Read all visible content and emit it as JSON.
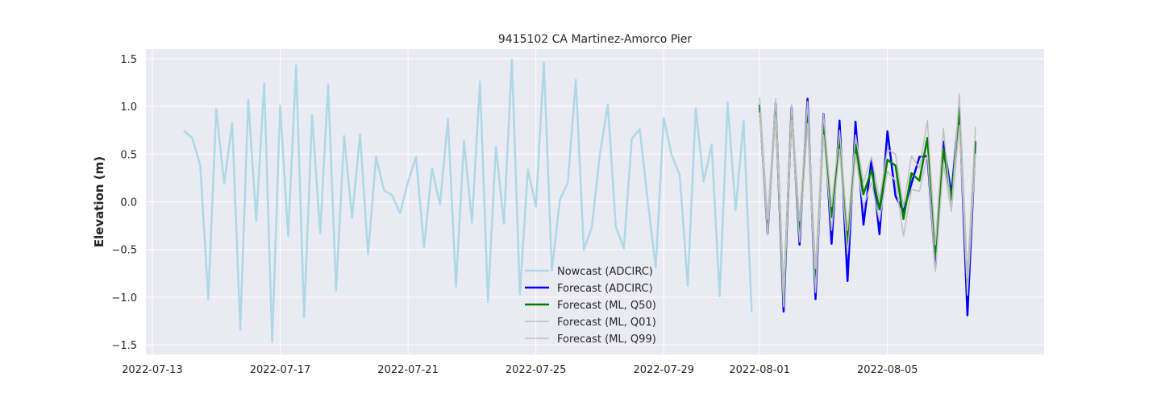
{
  "chart_data": {
    "type": "line",
    "title": "9415102 CA Martinez-Amorco Pier",
    "xlabel": "",
    "ylabel": "Elevation (m)",
    "x_axis": {
      "type": "time",
      "unit": "day",
      "origin": "2022-07-13",
      "range_days": [
        -0.2,
        27.9
      ],
      "ticks": [
        {
          "day": 0,
          "label": "2022-07-13"
        },
        {
          "day": 4,
          "label": "2022-07-17"
        },
        {
          "day": 8,
          "label": "2022-07-21"
        },
        {
          "day": 12,
          "label": "2022-07-25"
        },
        {
          "day": 16,
          "label": "2022-07-29"
        },
        {
          "day": 19,
          "label": "2022-08-01"
        },
        {
          "day": 23,
          "label": "2022-08-05"
        }
      ]
    },
    "y_axis": {
      "ylim": [
        -1.6,
        1.6
      ],
      "ticks": [
        {
          "value": 1.5,
          "label": "1.5"
        },
        {
          "value": 1.0,
          "label": "1.0"
        },
        {
          "value": 0.5,
          "label": "0.5"
        },
        {
          "value": 0.0,
          "label": "0.0"
        },
        {
          "value": -0.5,
          "label": "−0.5"
        },
        {
          "value": -1.0,
          "label": "−1.0"
        },
        {
          "value": -1.5,
          "label": "−1.5"
        }
      ]
    },
    "grid": true,
    "legend_position": "lower-center",
    "series": [
      {
        "name": "Nowcast (ADCIRC)",
        "color": "#add8e6",
        "width": 2.5,
        "x": [
          1.0,
          1.25,
          1.5,
          1.75,
          2.0,
          2.25,
          2.5,
          2.75,
          3.0,
          3.25,
          3.5,
          3.75,
          4.0,
          4.25,
          4.5,
          4.75,
          5.0,
          5.25,
          5.5,
          5.75,
          6.0,
          6.25,
          6.5,
          6.75,
          7.0,
          7.25,
          7.5,
          7.75,
          8.0,
          8.25,
          8.5,
          8.75,
          9.0,
          9.25,
          9.5,
          9.75,
          10.0,
          10.25,
          10.5,
          10.75,
          11.0,
          11.25,
          11.5,
          11.75,
          12.0,
          12.25,
          12.5,
          12.75,
          13.0,
          13.25,
          13.5,
          13.75,
          14.0,
          14.25,
          14.5,
          14.75,
          15.0,
          15.25,
          15.5,
          15.75,
          16.0,
          16.25,
          16.5,
          16.75,
          17.0,
          17.25,
          17.5,
          17.75,
          18.0,
          18.25,
          18.5,
          18.75
        ],
        "values": [
          0.74,
          0.67,
          0.38,
          -1.02,
          0.97,
          0.19,
          0.83,
          -1.34,
          1.07,
          -0.2,
          1.24,
          -1.47,
          1.01,
          -0.36,
          1.43,
          -1.21,
          0.91,
          -0.33,
          1.23,
          -0.93,
          0.69,
          -0.17,
          0.71,
          -0.55,
          0.47,
          0.12,
          0.07,
          -0.12,
          0.21,
          0.47,
          -0.48,
          0.35,
          -0.03,
          0.87,
          -0.89,
          0.64,
          -0.22,
          1.26,
          -1.05,
          0.58,
          -0.23,
          1.49,
          -0.97,
          0.34,
          -0.05,
          1.46,
          -0.72,
          0.02,
          0.2,
          1.28,
          -0.5,
          -0.27,
          0.49,
          1.02,
          -0.26,
          -0.49,
          0.66,
          0.76,
          0.01,
          -0.69,
          0.88,
          0.49,
          0.28,
          -0.88,
          0.98,
          0.21,
          0.6,
          -0.99,
          1.04,
          -0.09,
          0.85,
          -1.15
        ]
      },
      {
        "name": "Forecast (ADCIRC)",
        "color": "#0000ff",
        "width": 2.5,
        "x": [
          19.0,
          19.25,
          19.5,
          19.75,
          20.0,
          20.25,
          20.5,
          20.75,
          21.0,
          21.25,
          21.5,
          21.75,
          22.0,
          22.25,
          22.5,
          22.75,
          23.0,
          23.25,
          23.5,
          23.75,
          24.0,
          24.25,
          24.5,
          24.75,
          25.0,
          25.25,
          25.5,
          25.75
        ],
        "values": [
          1.01,
          -0.33,
          1.03,
          -1.15,
          0.99,
          -0.45,
          1.08,
          -1.02,
          0.92,
          -0.44,
          0.85,
          -0.83,
          0.84,
          -0.24,
          0.44,
          -0.34,
          0.74,
          0.06,
          -0.1,
          0.19,
          0.47,
          0.48,
          -0.68,
          0.63,
          0.08,
          0.98,
          -1.19,
          0.62
        ]
      },
      {
        "name": "Forecast (ML, Q50)",
        "color": "#008000",
        "width": 2.5,
        "x": [
          19.0,
          19.25,
          19.5,
          19.75,
          20.0,
          20.25,
          20.5,
          20.75,
          21.0,
          21.25,
          21.5,
          21.75,
          22.0,
          22.25,
          22.5,
          22.75,
          23.0,
          23.25,
          23.5,
          23.75,
          24.0,
          24.25,
          24.5,
          24.75,
          25.0,
          25.25,
          25.5,
          25.75
        ],
        "values": [
          1.0,
          -0.27,
          1.0,
          -1.05,
          0.95,
          -0.32,
          0.95,
          -0.85,
          0.8,
          -0.16,
          0.65,
          -0.45,
          0.6,
          0.08,
          0.33,
          -0.08,
          0.44,
          0.38,
          -0.18,
          0.3,
          0.22,
          0.67,
          -0.57,
          0.55,
          0.02,
          0.97,
          -0.9,
          0.63
        ]
      },
      {
        "name": "Forecast (ML, Q01)",
        "color": "#bfbfbf",
        "width": 1.5,
        "x": [
          19.0,
          19.25,
          19.5,
          19.75,
          20.0,
          20.25,
          20.5,
          20.75,
          21.0,
          21.25,
          21.5,
          21.75,
          22.0,
          22.25,
          22.5,
          22.75,
          23.0,
          23.25,
          23.5,
          23.75,
          24.0,
          24.25,
          24.5,
          24.75,
          25.0,
          25.25,
          25.5,
          25.75
        ],
        "values": [
          0.93,
          -0.35,
          0.9,
          -1.1,
          0.85,
          -0.42,
          0.82,
          -0.95,
          0.7,
          -0.3,
          0.55,
          -0.55,
          0.5,
          -0.05,
          0.2,
          -0.2,
          0.32,
          0.22,
          -0.36,
          0.13,
          0.11,
          0.49,
          -0.73,
          0.4,
          -0.1,
          0.8,
          -0.98,
          0.5
        ]
      },
      {
        "name": "Forecast (ML, Q99)",
        "color": "#bfbfbf",
        "width": 1.5,
        "x": [
          19.0,
          19.25,
          19.5,
          19.75,
          20.0,
          20.25,
          20.5,
          20.75,
          21.0,
          21.25,
          21.5,
          21.75,
          22.0,
          22.25,
          22.5,
          22.75,
          23.0,
          23.25,
          23.5,
          23.75,
          24.0,
          24.25,
          24.5,
          24.75,
          25.0,
          25.25,
          25.5,
          25.75
        ],
        "values": [
          1.09,
          -0.18,
          1.08,
          -0.95,
          1.02,
          -0.2,
          1.05,
          -0.7,
          0.92,
          -0.05,
          0.75,
          -0.3,
          0.7,
          0.2,
          0.47,
          0.02,
          0.55,
          0.5,
          -0.05,
          0.48,
          0.35,
          0.85,
          -0.45,
          0.77,
          -0.1,
          1.13,
          -0.8,
          0.78
        ]
      }
    ]
  }
}
